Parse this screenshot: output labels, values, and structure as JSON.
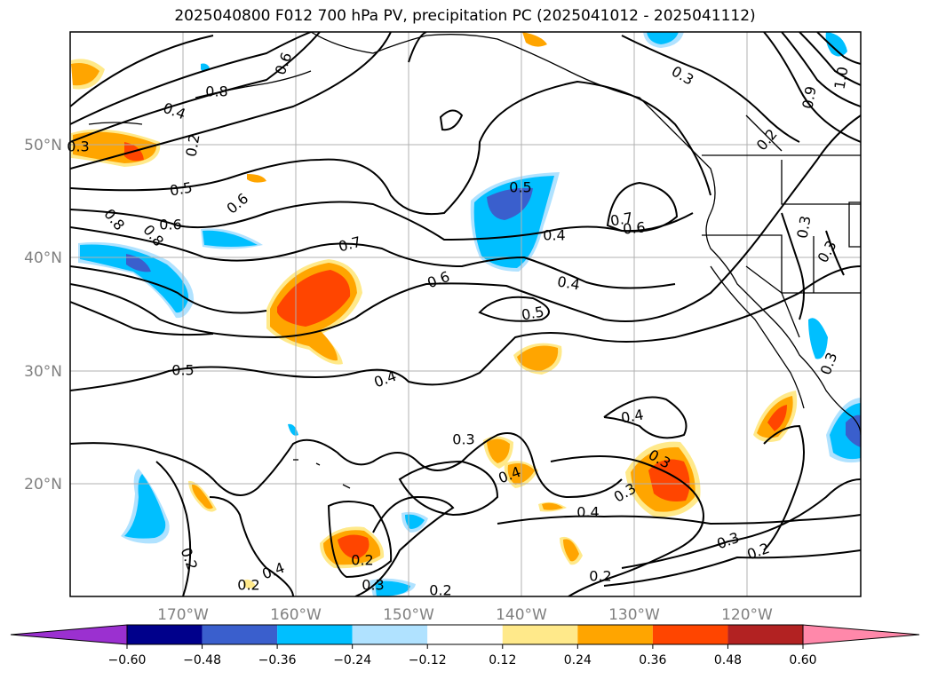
{
  "title": "2025040800 F012 700 hPa PV, precipitation PC (2025041012 - 2025041112)",
  "longitude_labels": [
    "170°W",
    "160°W",
    "150°W",
    "140°W",
    "130°W",
    "120°W"
  ],
  "latitude_labels": [
    "50°N",
    "40°N",
    "30°N",
    "20°N"
  ],
  "colorbar": {
    "ticks": [
      "−0.60",
      "−0.48",
      "−0.36",
      "−0.24",
      "−0.12",
      "0.12",
      "0.24",
      "0.36",
      "0.48",
      "0.60"
    ],
    "colors": [
      "#9b30d0",
      "#00008b",
      "#3a5fcd",
      "#00bfff",
      "#b0e2ff",
      "#ffffff",
      "#ffe98a",
      "#ffa500",
      "#ff4500",
      "#b22222",
      "#ff88aa"
    ]
  },
  "contour_labels": [
    "0.8",
    "0.4",
    "0.2",
    "0.6",
    "0.6",
    "0.3",
    "0.8",
    "0.9",
    "1.0",
    "0.5",
    "0.6",
    "0.8",
    "0.7",
    "0.6",
    "0.5",
    "0.4",
    "0.5",
    "0.7",
    "0.6",
    "0.4",
    "0.4",
    "0.5",
    "0.4",
    "0.3",
    "0.3",
    "0.3",
    "0.3",
    "0.2",
    "0.3",
    "0.4",
    "0.3",
    "0.4",
    "0.4",
    "0.2",
    "0.2",
    "0.2",
    "0.3",
    "0.2",
    "0.2",
    "0.3",
    "0.2",
    "0.3"
  ]
}
